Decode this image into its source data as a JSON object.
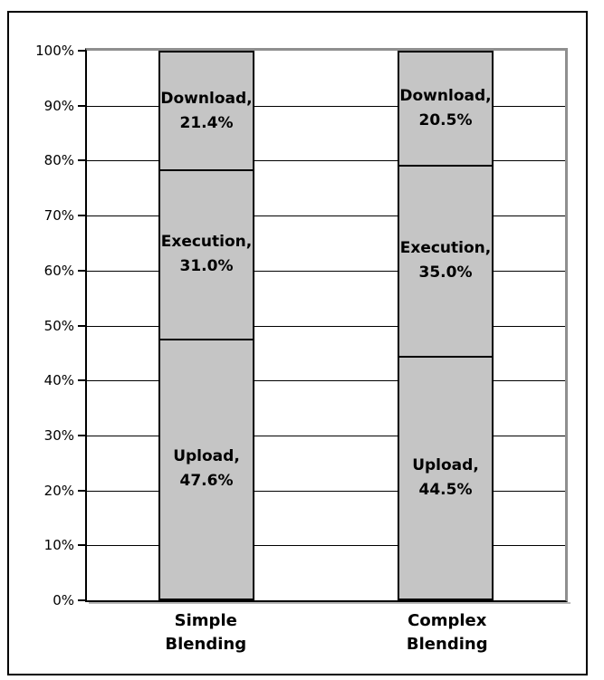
{
  "chart_data": {
    "type": "bar",
    "variant": "100-percent-stacked-column",
    "title": "",
    "xlabel": "",
    "ylabel": "",
    "legend": "none",
    "grid": "horizontal",
    "ylim": [
      0,
      100
    ],
    "yticks": [
      "0%",
      "10%",
      "20%",
      "30%",
      "40%",
      "50%",
      "60%",
      "70%",
      "80%",
      "90%",
      "100%"
    ],
    "categories": [
      "Simple Blending",
      "Complex Blending"
    ],
    "series": [
      {
        "name": "Upload",
        "values": [
          47.6,
          44.5
        ]
      },
      {
        "name": "Execution",
        "values": [
          31.0,
          35.0
        ]
      },
      {
        "name": "Download",
        "values": [
          21.4,
          20.5
        ]
      }
    ],
    "data_labels": [
      [
        "Upload, 47.6%",
        "Execution, 31.0%",
        "Download, 21.4%"
      ],
      [
        "Upload, 44.5%",
        "Execution, 35.0%",
        "Download, 20.5%"
      ]
    ],
    "bar_centers_pct": [
      25,
      75
    ],
    "colors": {
      "bar_fill": "#c5c5c5",
      "bar_border": "#000000",
      "gridline": "#000000",
      "axis": "#000000",
      "plot_top_right_border": "#8f8f8f",
      "axis_shadow": "#b8b8b8",
      "frame": "#000000",
      "background": "#ffffff",
      "text": "#000000"
    }
  }
}
